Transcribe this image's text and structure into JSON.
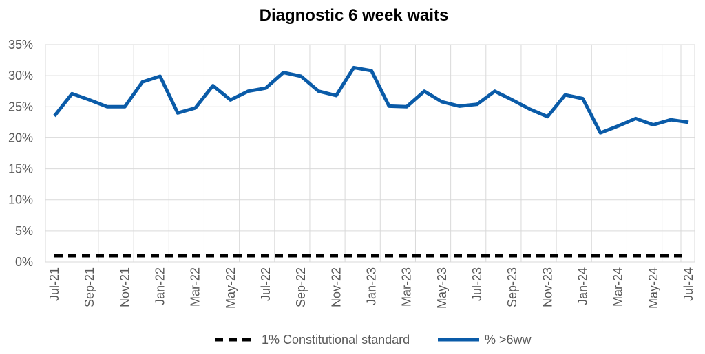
{
  "chart_data": {
    "type": "line",
    "title": "Diagnostic 6 week waits",
    "xlabel": "",
    "ylabel": "",
    "ylim": [
      0,
      35
    ],
    "y_ticks": [
      "0%",
      "5%",
      "10%",
      "15%",
      "20%",
      "25%",
      "30%",
      "35%"
    ],
    "grid": true,
    "legend_position": "bottom",
    "x": [
      "Jul-21",
      "Aug-21",
      "Sep-21",
      "Oct-21",
      "Nov-21",
      "Dec-21",
      "Jan-22",
      "Feb-22",
      "Mar-22",
      "Apr-22",
      "May-22",
      "Jun-22",
      "Jul-22",
      "Aug-22",
      "Sep-22",
      "Oct-22",
      "Nov-22",
      "Dec-22",
      "Jan-23",
      "Feb-23",
      "Mar-23",
      "Apr-23",
      "May-23",
      "Jun-23",
      "Jul-23",
      "Aug-23",
      "Sep-23",
      "Oct-23",
      "Nov-23",
      "Dec-23",
      "Jan-24",
      "Feb-24",
      "Mar-24",
      "Apr-24",
      "May-24",
      "Jun-24",
      "Jul-24"
    ],
    "x_tick_labels": [
      "Jul-21",
      "Sep-21",
      "Nov-21",
      "Jan-22",
      "Mar-22",
      "May-22",
      "Jul-22",
      "Sep-22",
      "Nov-22",
      "Jan-23",
      "Mar-23",
      "May-23",
      "Jul-23",
      "Sep-23",
      "Nov-23",
      "Jan-24",
      "Mar-24",
      "May-24",
      "Jul-24"
    ],
    "series": [
      {
        "name": "1% Constitutional standard",
        "color": "#000000",
        "style": "dashed",
        "values": [
          1,
          1,
          1,
          1,
          1,
          1,
          1,
          1,
          1,
          1,
          1,
          1,
          1,
          1,
          1,
          1,
          1,
          1,
          1,
          1,
          1,
          1,
          1,
          1,
          1,
          1,
          1,
          1,
          1,
          1,
          1,
          1,
          1,
          1,
          1,
          1,
          1
        ]
      },
      {
        "name": "% >6ww",
        "color": "#0A5BA8",
        "style": "solid",
        "values": [
          23.5,
          27.1,
          26.1,
          25.0,
          25.0,
          29.0,
          29.9,
          24.0,
          24.8,
          28.4,
          26.1,
          27.5,
          28.0,
          30.5,
          29.9,
          27.5,
          26.8,
          31.3,
          30.8,
          25.1,
          25.0,
          27.5,
          25.8,
          25.1,
          25.4,
          27.5,
          26.1,
          24.6,
          23.4,
          26.9,
          26.3,
          20.8,
          21.9,
          23.1,
          22.1,
          22.9,
          22.5
        ]
      }
    ]
  }
}
